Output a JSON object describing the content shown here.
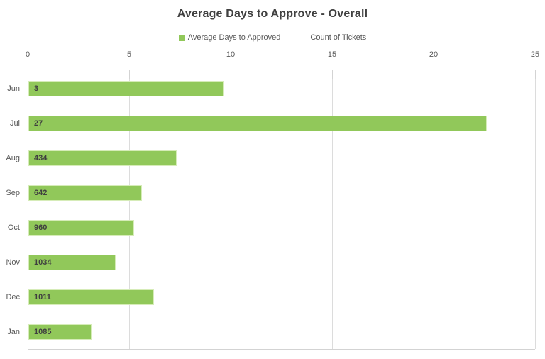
{
  "title": "Average Days to Approve - Overall",
  "legend": [
    {
      "label": "Average Days to Approved",
      "color": "#91c85a"
    },
    {
      "label": "Count of Tickets",
      "color": null
    }
  ],
  "colors": {
    "bar_fill": "#91c85a",
    "bar_border": "#d6ecb8",
    "gridline": "#dcdcdc",
    "tick": "#d3d3d3",
    "axis_text": "#595959",
    "title_text": "#404040",
    "data_label_text": "#3f3f3f"
  },
  "chart_data": {
    "type": "bar",
    "orientation": "horizontal",
    "title": "Average Days to Approve - Overall",
    "categories": [
      "Jun",
      "Jul",
      "Aug",
      "Sep",
      "Oct",
      "Nov",
      "Dec",
      "Jan"
    ],
    "series": [
      {
        "name": "Average Days to Approved",
        "role": "bar-length",
        "values": [
          9.6,
          22.6,
          7.3,
          5.6,
          5.2,
          4.3,
          6.2,
          3.1
        ]
      },
      {
        "name": "Count of Tickets",
        "role": "data-labels-inside-bars",
        "values": [
          3,
          27,
          434,
          642,
          960,
          1034,
          1011,
          1085
        ]
      }
    ],
    "xlabel": "",
    "ylabel": "",
    "xlim": [
      0,
      25
    ],
    "xticks": [
      0,
      5,
      10,
      15,
      20,
      25
    ],
    "x_axis_position": "top",
    "grid": true,
    "legend_position": "top"
  }
}
